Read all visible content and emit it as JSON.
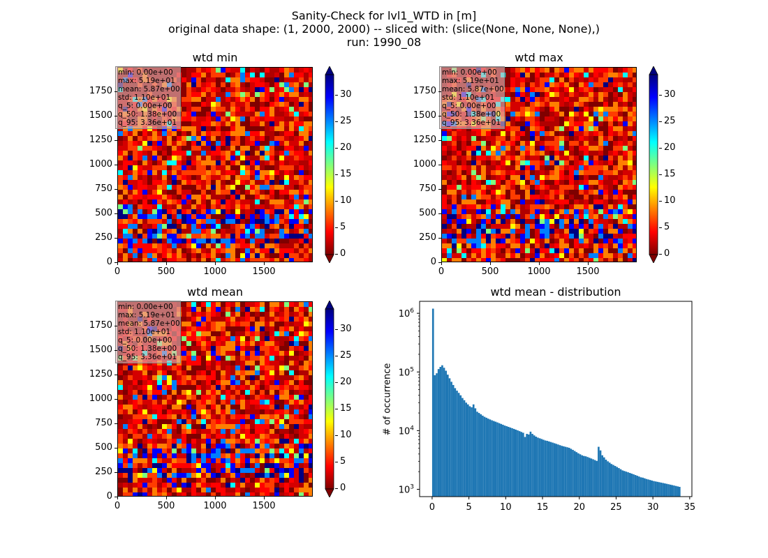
{
  "figure": {
    "title_lines": [
      "Sanity-Check for lvl1_WTD in [m]",
      "original data shape: (1, 2000, 2000) -- sliced with: (slice(None, None, None),)",
      "run: 1990_08"
    ]
  },
  "colors": {
    "colormap": [
      "#00007f",
      "#0000ff",
      "#007fff",
      "#00ffff",
      "#7fff7f",
      "#ffff00",
      "#ff7f00",
      "#ff0000",
      "#7f0000"
    ],
    "hist_bar": "#1f77b4",
    "stats_box": "#e0b4b4"
  },
  "maps": [
    {
      "id": "wtd-min",
      "title": "wtd min",
      "x_ticks": [
        "0",
        "500",
        "1000",
        "1500"
      ],
      "y_ticks": [
        "0",
        "250",
        "500",
        "750",
        "1000",
        "1250",
        "1500",
        "1750"
      ],
      "colorbar_ticks": [
        "0",
        "5",
        "10",
        "15",
        "20",
        "25",
        "30"
      ],
      "stats": [
        "min: 0.00e+00",
        "max: 5.19e+01",
        "mean: 5.87e+00",
        "std: 1.10e+01",
        "q_5: 0.00e+00",
        "q_50: 1.38e+00",
        "q_95: 3.36e+01"
      ]
    },
    {
      "id": "wtd-max",
      "title": "wtd max",
      "x_ticks": [
        "0",
        "500",
        "1000",
        "1500"
      ],
      "y_ticks": [
        "0",
        "250",
        "500",
        "750",
        "1000",
        "1250",
        "1500",
        "1750"
      ],
      "colorbar_ticks": [
        "0",
        "5",
        "10",
        "15",
        "20",
        "25",
        "30"
      ],
      "stats": [
        "min: 0.00e+00",
        "max: 5.19e+01",
        "mean: 5.87e+00",
        "std: 1.10e+01",
        "q_5: 0.00e+00",
        "q_50: 1.38e+00",
        "q_95: 3.36e+01"
      ]
    },
    {
      "id": "wtd-mean",
      "title": "wtd mean",
      "x_ticks": [
        "0",
        "500",
        "1000",
        "1500"
      ],
      "y_ticks": [
        "0",
        "250",
        "500",
        "750",
        "1000",
        "1250",
        "1500",
        "1750"
      ],
      "colorbar_ticks": [
        "0",
        "5",
        "10",
        "15",
        "20",
        "25",
        "30"
      ],
      "stats": [
        "min: 0.00e+00",
        "max: 5.19e+01",
        "mean: 5.87e+00",
        "std: 1.10e+01",
        "q_5: 0.00e+00",
        "q_50: 1.38e+00",
        "q_95: 3.36e+01"
      ]
    }
  ],
  "chart_data": {
    "type": "bar",
    "title": "wtd mean - distribution",
    "xlabel": "",
    "ylabel": "# of occurrence",
    "yscale": "log",
    "xlim": [
      -1.7,
      35.3
    ],
    "ylim": [
      750,
      1600000
    ],
    "x_ticks": [
      "0",
      "5",
      "10",
      "15",
      "20",
      "25",
      "30",
      "35"
    ],
    "y_ticks": [
      "10^3",
      "10^4",
      "10^5",
      "10^6"
    ],
    "bin_width": 0.25,
    "bin_start": 0,
    "values": [
      1200000,
      88000,
      95000,
      112000,
      122000,
      130000,
      118000,
      105000,
      90000,
      78000,
      68000,
      60000,
      53000,
      48000,
      44000,
      40000,
      36000,
      33000,
      30000,
      28000,
      26000,
      25000,
      28000,
      24000,
      21000,
      20000,
      19000,
      18000,
      17200,
      16600,
      16000,
      15500,
      15000,
      14600,
      14200,
      13800,
      13400,
      13000,
      12600,
      12200,
      11900,
      11600,
      11300,
      11000,
      10700,
      10400,
      10100,
      9800,
      9500,
      9200,
      7800,
      8800,
      8600,
      9600,
      8800,
      8300,
      7900,
      7600,
      7400,
      7200,
      7000,
      6800,
      6700,
      6550,
      6400,
      6250,
      6100,
      5950,
      5800,
      5650,
      5500,
      5400,
      5300,
      5200,
      5100,
      4900,
      4700,
      4500,
      4300,
      4100,
      3950,
      3800,
      3700,
      3650,
      3550,
      3450,
      3350,
      3250,
      3150,
      3050,
      5300,
      4600,
      3800,
      3500,
      3200,
      3000,
      2850,
      2700,
      2600,
      2500,
      2400,
      2300,
      2200,
      2100,
      2050,
      2000,
      1950,
      1900,
      1850,
      1800,
      1750,
      1700,
      1650,
      1600,
      1580,
      1540,
      1500,
      1470,
      1440,
      1410,
      1380,
      1360,
      1340,
      1320,
      1300,
      1280,
      1260,
      1240,
      1220,
      1200,
      1180,
      1160,
      1140,
      1120,
      1100
    ]
  }
}
